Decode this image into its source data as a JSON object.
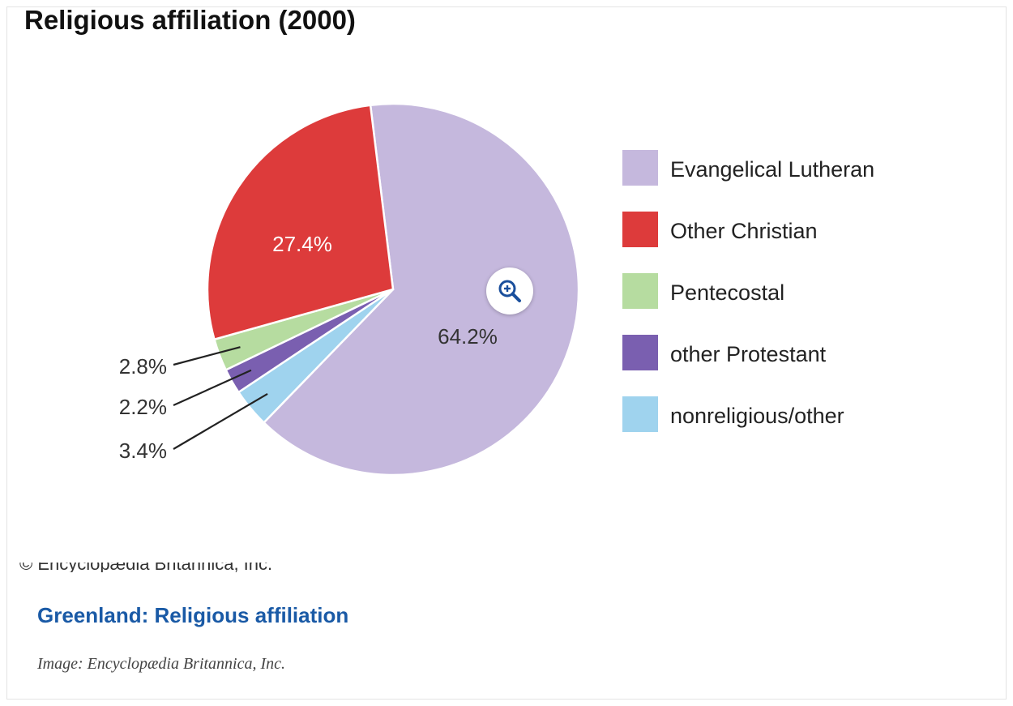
{
  "chart_data": {
    "type": "pie",
    "title": "Religious affiliation (2000)",
    "categories": [
      "Evangelical Lutheran",
      "Other Christian",
      "Pentecostal",
      "other Protestant",
      "nonreligious/other"
    ],
    "values": [
      64.2,
      27.4,
      2.8,
      2.2,
      3.4
    ],
    "labels": [
      "64.2%",
      "27.4%",
      "2.8%",
      "2.2%",
      "3.4%"
    ],
    "colors": [
      "#c5b8dd",
      "#dd3b3b",
      "#b6dca0",
      "#7a5fb0",
      "#9fd3ee"
    ],
    "legend_position": "right"
  },
  "credit_text": "© Encyclopædia Britannica, Inc.",
  "caption": {
    "link_text": "Greenland: Religious affiliation",
    "image_credit": "Image: Encyclopædia Britannica, Inc."
  },
  "zoom_icon": "zoom-in-icon"
}
